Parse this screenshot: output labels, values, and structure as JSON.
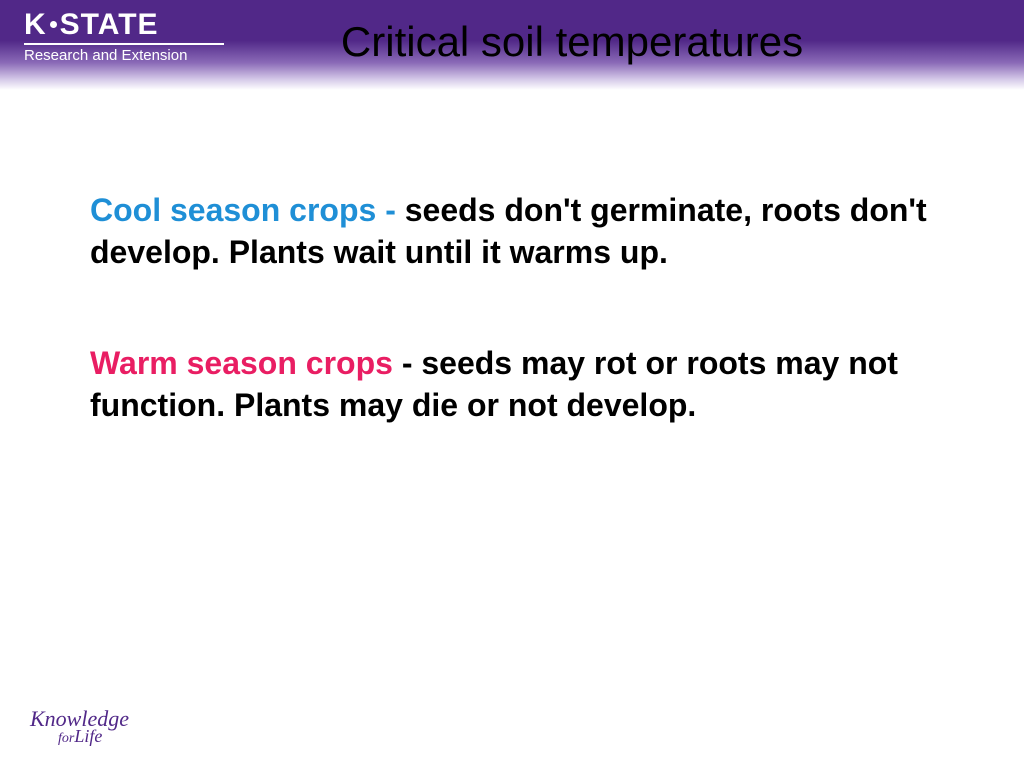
{
  "header": {
    "logo_main_left": "K",
    "logo_main_right": "STATE",
    "logo_sub": "Research and Extension",
    "title": "Critical soil temperatures"
  },
  "content": {
    "cool": {
      "label": "Cool season crops - ",
      "text": "seeds don't germinate, roots don't develop. Plants wait until it warms up."
    },
    "warm": {
      "label": "Warm season crops",
      "text": " - seeds may rot or roots may not function. Plants may die or not develop."
    }
  },
  "footer": {
    "knowledge": "Knowledge",
    "for": "for",
    "life": "Life"
  },
  "colors": {
    "purple": "#512888",
    "cool_blue": "#1f8fd6",
    "warm_pink": "#e91e63",
    "black": "#000000",
    "white": "#ffffff"
  }
}
